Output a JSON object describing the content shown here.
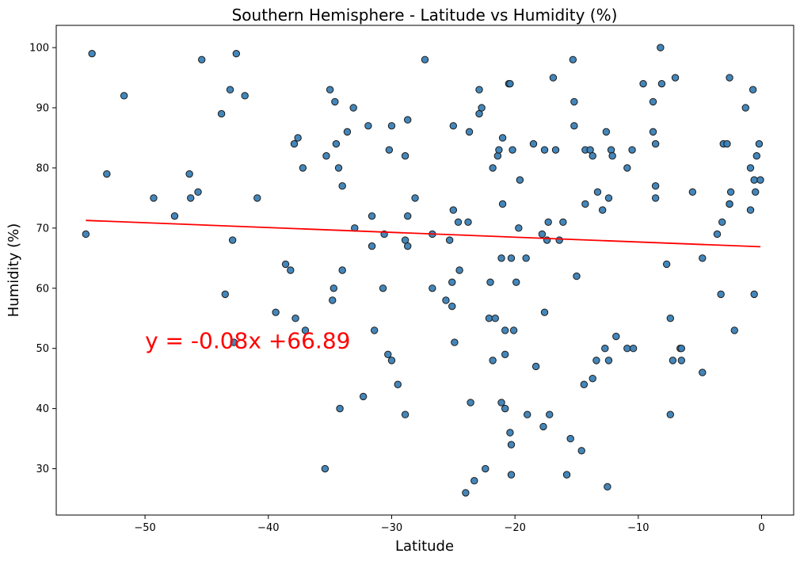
{
  "chart_data": {
    "type": "scatter",
    "title": "Southern Hemisphere - Latitude vs Humidity (%)",
    "xlabel": "Latitude",
    "ylabel": "Humidity (%)",
    "xlim": [
      -57.2,
      2.6
    ],
    "ylim": [
      22.3,
      103.7
    ],
    "xticks": [
      -50,
      -40,
      -30,
      -20,
      -10,
      0
    ],
    "yticks": [
      30,
      40,
      50,
      60,
      70,
      80,
      90,
      100
    ],
    "grid": false,
    "marker_color": "#3a7fb5",
    "marker_edge": "#1a1a1a",
    "regression": {
      "equation": "y = -0.08x +66.89",
      "slope": -0.08,
      "intercept": 66.89,
      "x_range": [
        -54.8,
        -0.1
      ],
      "color": "#ff0000",
      "label_position": [
        -50,
        50
      ]
    },
    "points": [
      [
        -54.8,
        69
      ],
      [
        -54.3,
        99
      ],
      [
        -53.1,
        79
      ],
      [
        -51.7,
        92
      ],
      [
        -49.3,
        75
      ],
      [
        -47.6,
        72
      ],
      [
        -46.4,
        79
      ],
      [
        -46.3,
        75
      ],
      [
        -45.7,
        76
      ],
      [
        -45.4,
        98
      ],
      [
        -43.8,
        89
      ],
      [
        -43.5,
        59
      ],
      [
        -43.1,
        93
      ],
      [
        -42.9,
        68
      ],
      [
        -42.8,
        51
      ],
      [
        -42.6,
        99
      ],
      [
        -41.9,
        92
      ],
      [
        -40.9,
        75
      ],
      [
        -39.4,
        56
      ],
      [
        -38.6,
        64
      ],
      [
        -38.2,
        63
      ],
      [
        -37.9,
        84
      ],
      [
        -37.8,
        55
      ],
      [
        -37.6,
        85
      ],
      [
        -37.2,
        80
      ],
      [
        -37.0,
        53
      ],
      [
        -35.4,
        30
      ],
      [
        -35.3,
        82
      ],
      [
        -35.0,
        93
      ],
      [
        -34.8,
        58
      ],
      [
        -34.7,
        60
      ],
      [
        -34.6,
        91
      ],
      [
        -34.5,
        84
      ],
      [
        -34.3,
        80
      ],
      [
        -34.2,
        40
      ],
      [
        -34.0,
        77
      ],
      [
        -34.0,
        63
      ],
      [
        -33.6,
        86
      ],
      [
        -33.1,
        90
      ],
      [
        -33.0,
        70
      ],
      [
        -32.3,
        42
      ],
      [
        -31.9,
        87
      ],
      [
        -31.6,
        67
      ],
      [
        -31.6,
        72
      ],
      [
        -31.4,
        53
      ],
      [
        -30.7,
        60
      ],
      [
        -30.6,
        69
      ],
      [
        -30.3,
        49
      ],
      [
        -30.2,
        83
      ],
      [
        -30.0,
        87
      ],
      [
        -30.0,
        48
      ],
      [
        -29.5,
        44
      ],
      [
        -28.9,
        39
      ],
      [
        -28.9,
        82
      ],
      [
        -28.9,
        68
      ],
      [
        -28.7,
        88
      ],
      [
        -28.7,
        67
      ],
      [
        -28.7,
        72
      ],
      [
        -28.1,
        75
      ],
      [
        -27.3,
        98
      ],
      [
        -26.7,
        69
      ],
      [
        -26.7,
        60
      ],
      [
        -25.6,
        58
      ],
      [
        -25.3,
        68
      ],
      [
        -25.1,
        61
      ],
      [
        -25.1,
        57
      ],
      [
        -25.0,
        87
      ],
      [
        -25.0,
        73
      ],
      [
        -24.9,
        51
      ],
      [
        -24.6,
        71
      ],
      [
        -24.5,
        63
      ],
      [
        -24.0,
        26
      ],
      [
        -23.8,
        71
      ],
      [
        -23.7,
        86
      ],
      [
        -23.6,
        41
      ],
      [
        -23.3,
        28
      ],
      [
        -22.9,
        93
      ],
      [
        -22.9,
        89
      ],
      [
        -22.7,
        90
      ],
      [
        -22.4,
        30
      ],
      [
        -22.1,
        55
      ],
      [
        -22.0,
        61
      ],
      [
        -21.8,
        80
      ],
      [
        -21.8,
        48
      ],
      [
        -21.6,
        55
      ],
      [
        -21.4,
        82
      ],
      [
        -21.3,
        83
      ],
      [
        -21.1,
        65
      ],
      [
        -21.1,
        41
      ],
      [
        -21.0,
        85
      ],
      [
        -21.0,
        74
      ],
      [
        -20.8,
        40
      ],
      [
        -20.8,
        53
      ],
      [
        -20.8,
        49
      ],
      [
        -20.5,
        94
      ],
      [
        -20.4,
        94
      ],
      [
        -20.4,
        36
      ],
      [
        -20.3,
        65
      ],
      [
        -20.3,
        34
      ],
      [
        -20.3,
        29
      ],
      [
        -20.2,
        83
      ],
      [
        -20.1,
        53
      ],
      [
        -19.9,
        61
      ],
      [
        -19.7,
        70
      ],
      [
        -19.6,
        78
      ],
      [
        -19.1,
        65
      ],
      [
        -19.0,
        39
      ],
      [
        -18.5,
        84
      ],
      [
        -18.3,
        47
      ],
      [
        -17.8,
        69
      ],
      [
        -17.7,
        37
      ],
      [
        -17.6,
        83
      ],
      [
        -17.6,
        56
      ],
      [
        -17.4,
        68
      ],
      [
        -17.3,
        71
      ],
      [
        -17.2,
        39
      ],
      [
        -16.9,
        95
      ],
      [
        -16.7,
        83
      ],
      [
        -16.4,
        68
      ],
      [
        -16.1,
        71
      ],
      [
        -15.8,
        29
      ],
      [
        -15.5,
        35
      ],
      [
        -15.3,
        98
      ],
      [
        -15.2,
        91
      ],
      [
        -15.2,
        87
      ],
      [
        -15.0,
        62
      ],
      [
        -14.6,
        33
      ],
      [
        -14.4,
        44
      ],
      [
        -14.3,
        83
      ],
      [
        -14.3,
        74
      ],
      [
        -13.9,
        83
      ],
      [
        -13.7,
        45
      ],
      [
        -13.7,
        82
      ],
      [
        -13.4,
        48
      ],
      [
        -13.3,
        76
      ],
      [
        -12.9,
        73
      ],
      [
        -12.7,
        50
      ],
      [
        -12.6,
        86
      ],
      [
        -12.5,
        27
      ],
      [
        -12.4,
        75
      ],
      [
        -12.4,
        48
      ],
      [
        -12.2,
        83
      ],
      [
        -12.1,
        82
      ],
      [
        -11.8,
        52
      ],
      [
        -10.9,
        50
      ],
      [
        -10.9,
        80
      ],
      [
        -10.5,
        83
      ],
      [
        -10.4,
        50
      ],
      [
        -9.6,
        94
      ],
      [
        -8.8,
        91
      ],
      [
        -8.8,
        86
      ],
      [
        -8.6,
        84
      ],
      [
        -8.6,
        75
      ],
      [
        -8.6,
        77
      ],
      [
        -8.2,
        100
      ],
      [
        -8.1,
        94
      ],
      [
        -7.7,
        64
      ],
      [
        -7.4,
        39
      ],
      [
        -7.4,
        55
      ],
      [
        -7.2,
        48
      ],
      [
        -7.0,
        95
      ],
      [
        -6.6,
        50
      ],
      [
        -6.5,
        48
      ],
      [
        -6.5,
        50
      ],
      [
        -5.6,
        76
      ],
      [
        -4.8,
        65
      ],
      [
        -4.8,
        46
      ],
      [
        -3.6,
        69
      ],
      [
        -3.3,
        59
      ],
      [
        -3.2,
        71
      ],
      [
        -3.1,
        84
      ],
      [
        -2.8,
        84
      ],
      [
        -2.6,
        74
      ],
      [
        -2.6,
        74
      ],
      [
        -2.6,
        95
      ],
      [
        -2.5,
        76
      ],
      [
        -2.2,
        53
      ],
      [
        -1.3,
        90
      ],
      [
        -0.9,
        80
      ],
      [
        -0.9,
        73
      ],
      [
        -0.7,
        93
      ],
      [
        -0.6,
        59
      ],
      [
        -0.6,
        78
      ],
      [
        -0.5,
        76
      ],
      [
        -0.4,
        82
      ],
      [
        -0.2,
        84
      ],
      [
        -0.1,
        78
      ]
    ]
  }
}
